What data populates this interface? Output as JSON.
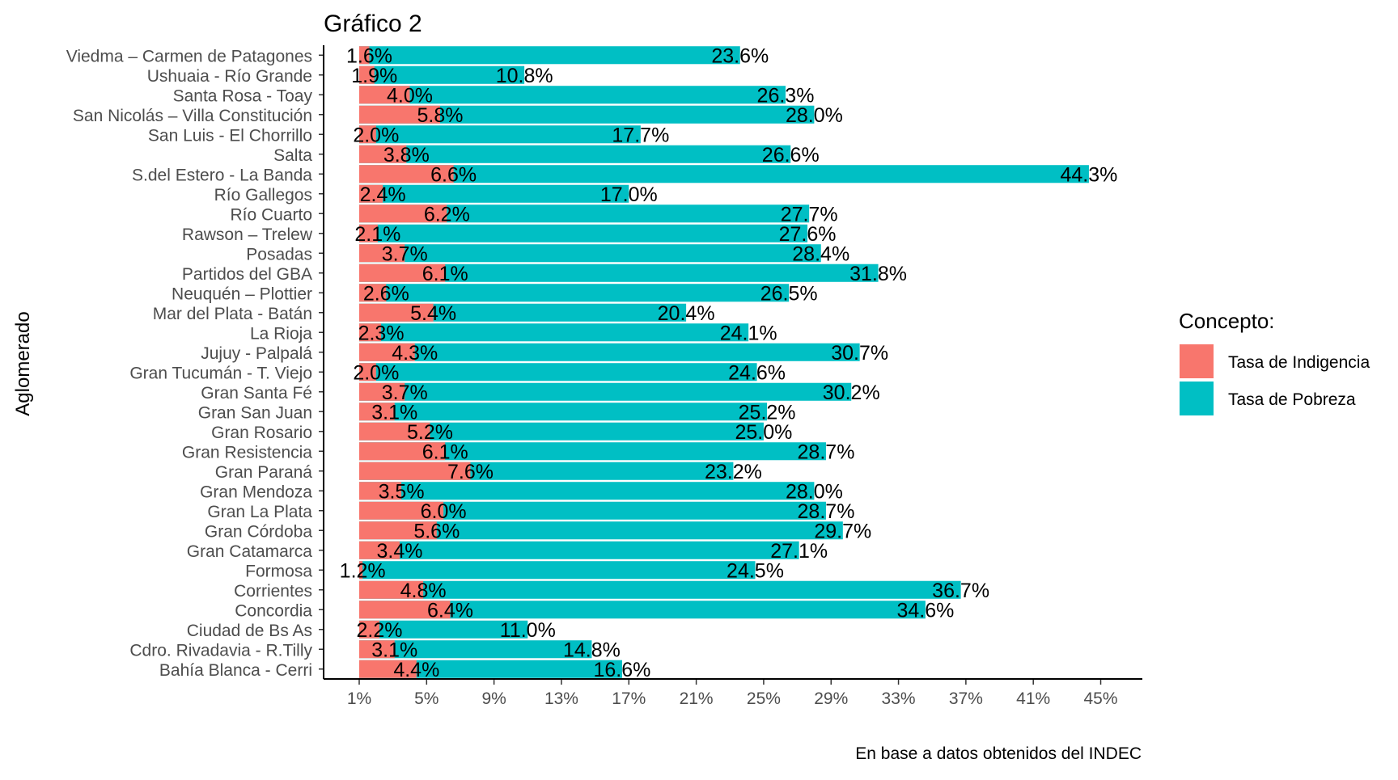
{
  "chart_data": {
    "type": "bar",
    "orientation": "horizontal",
    "title": "Gráfico 2",
    "ylabel": "Aglomerado",
    "xlabel": "",
    "caption": "En base a datos obtenidos del INDEC",
    "legend": {
      "title": "Concepto:",
      "position": "right"
    },
    "colors": {
      "indigencia": "#F8766D",
      "pobreza": "#00BFC4"
    },
    "x_ticks": [
      "1%",
      "5%",
      "9%",
      "13%",
      "17%",
      "21%",
      "25%",
      "29%",
      "33%",
      "37%",
      "41%",
      "45%"
    ],
    "xlim": [
      0,
      45
    ],
    "grid": false,
    "categories": [
      "Viedma – Carmen de Patagones",
      "Ushuaia - Río Grande",
      "Santa Rosa - Toay",
      "San Nicolás – Villa Constitución",
      "San Luis - El Chorrillo",
      "Salta",
      "S.del Estero - La Banda",
      "Río Gallegos",
      "Río Cuarto",
      "Rawson – Trelew",
      "Posadas",
      "Partidos del GBA",
      "Neuquén – Plottier",
      "Mar del Plata - Batán",
      "La Rioja",
      "Jujuy - Palpalá",
      "Gran Tucumán - T. Viejo",
      "Gran Santa Fé",
      "Gran San Juan",
      "Gran Rosario",
      "Gran Resistencia",
      "Gran Paraná",
      "Gran Mendoza",
      "Gran La Plata",
      "Gran Córdoba",
      "Gran Catamarca",
      "Formosa",
      "Corrientes",
      "Concordia",
      "Ciudad de Bs As",
      "Cdro. Rivadavia - R.Tilly",
      "Bahía Blanca - Cerri"
    ],
    "series": [
      {
        "name": "Tasa de Indigencia",
        "values": [
          1.6,
          1.9,
          4.0,
          5.8,
          2.0,
          3.8,
          6.6,
          2.4,
          6.2,
          2.1,
          3.7,
          6.1,
          2.6,
          5.4,
          2.3,
          4.3,
          2.0,
          3.7,
          3.1,
          5.2,
          6.1,
          7.6,
          3.5,
          6.0,
          5.6,
          3.4,
          1.2,
          4.8,
          6.4,
          2.2,
          3.1,
          4.4
        ],
        "labels": [
          "1.6%",
          "1.9%",
          "4.0%",
          "5.8%",
          "2.0%",
          "3.8%",
          "6.6%",
          "2.4%",
          "6.2%",
          "2.1%",
          "3.7%",
          "6.1%",
          "2.6%",
          "5.4%",
          "2.3%",
          "4.3%",
          "2.0%",
          "3.7%",
          "3.1%",
          "5.2%",
          "6.1%",
          "7.6%",
          "3.5%",
          "6.0%",
          "5.6%",
          "3.4%",
          "1.2%",
          "4.8%",
          "6.4%",
          "2.2%",
          "3.1%",
          "4.4%"
        ]
      },
      {
        "name": "Tasa de Pobreza",
        "values": [
          23.6,
          10.8,
          26.3,
          28.0,
          17.7,
          26.6,
          44.3,
          17.0,
          27.7,
          27.6,
          28.4,
          31.8,
          26.5,
          20.4,
          24.1,
          30.7,
          24.6,
          30.2,
          25.2,
          25.0,
          28.7,
          23.2,
          28.0,
          28.7,
          29.7,
          27.1,
          24.5,
          36.7,
          34.6,
          11.0,
          14.8,
          16.6
        ],
        "labels": [
          "23.6%",
          "10.8%",
          "26.3%",
          "28.0%",
          "17.7%",
          "26.6%",
          "44.3%",
          "17.0%",
          "27.7%",
          "27.6%",
          "28.4%",
          "31.8%",
          "26.5%",
          "20.4%",
          "24.1%",
          "30.7%",
          "24.6%",
          "30.2%",
          "25.2%",
          "25.0%",
          "28.7%",
          "23.2%",
          "28.0%",
          "28.7%",
          "29.7%",
          "27.1%",
          "24.5%",
          "36.7%",
          "34.6%",
          "11.0%",
          "14.8%",
          "16.6%"
        ]
      }
    ]
  }
}
